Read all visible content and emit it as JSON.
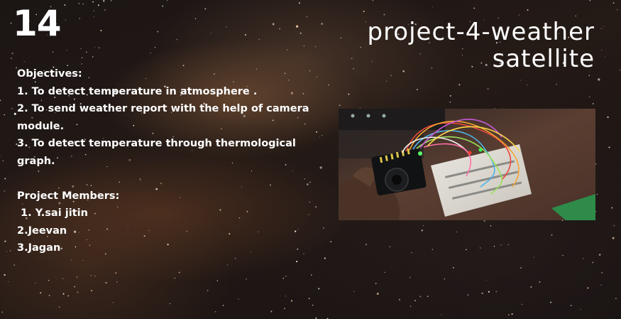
{
  "slide": {
    "number": "14",
    "title_line1": "project-4-weather",
    "title_line2": "satellite"
  },
  "objectives": {
    "heading": "Objectives:",
    "items": [
      "1. To detect temperature in atmosphere .",
      "2. To send weather report with the help of camera",
      "module.",
      "3. To detect temperature through thermological",
      "graph."
    ]
  },
  "members": {
    "heading": "Project Members:",
    "items": [
      " 1. Y.sai jitin",
      "2.Jeevan",
      "3.Jagan"
    ]
  },
  "colors": {
    "text": "#ffffff",
    "background": "#1b1514"
  },
  "photo": {
    "icon": "circuit-photo"
  }
}
